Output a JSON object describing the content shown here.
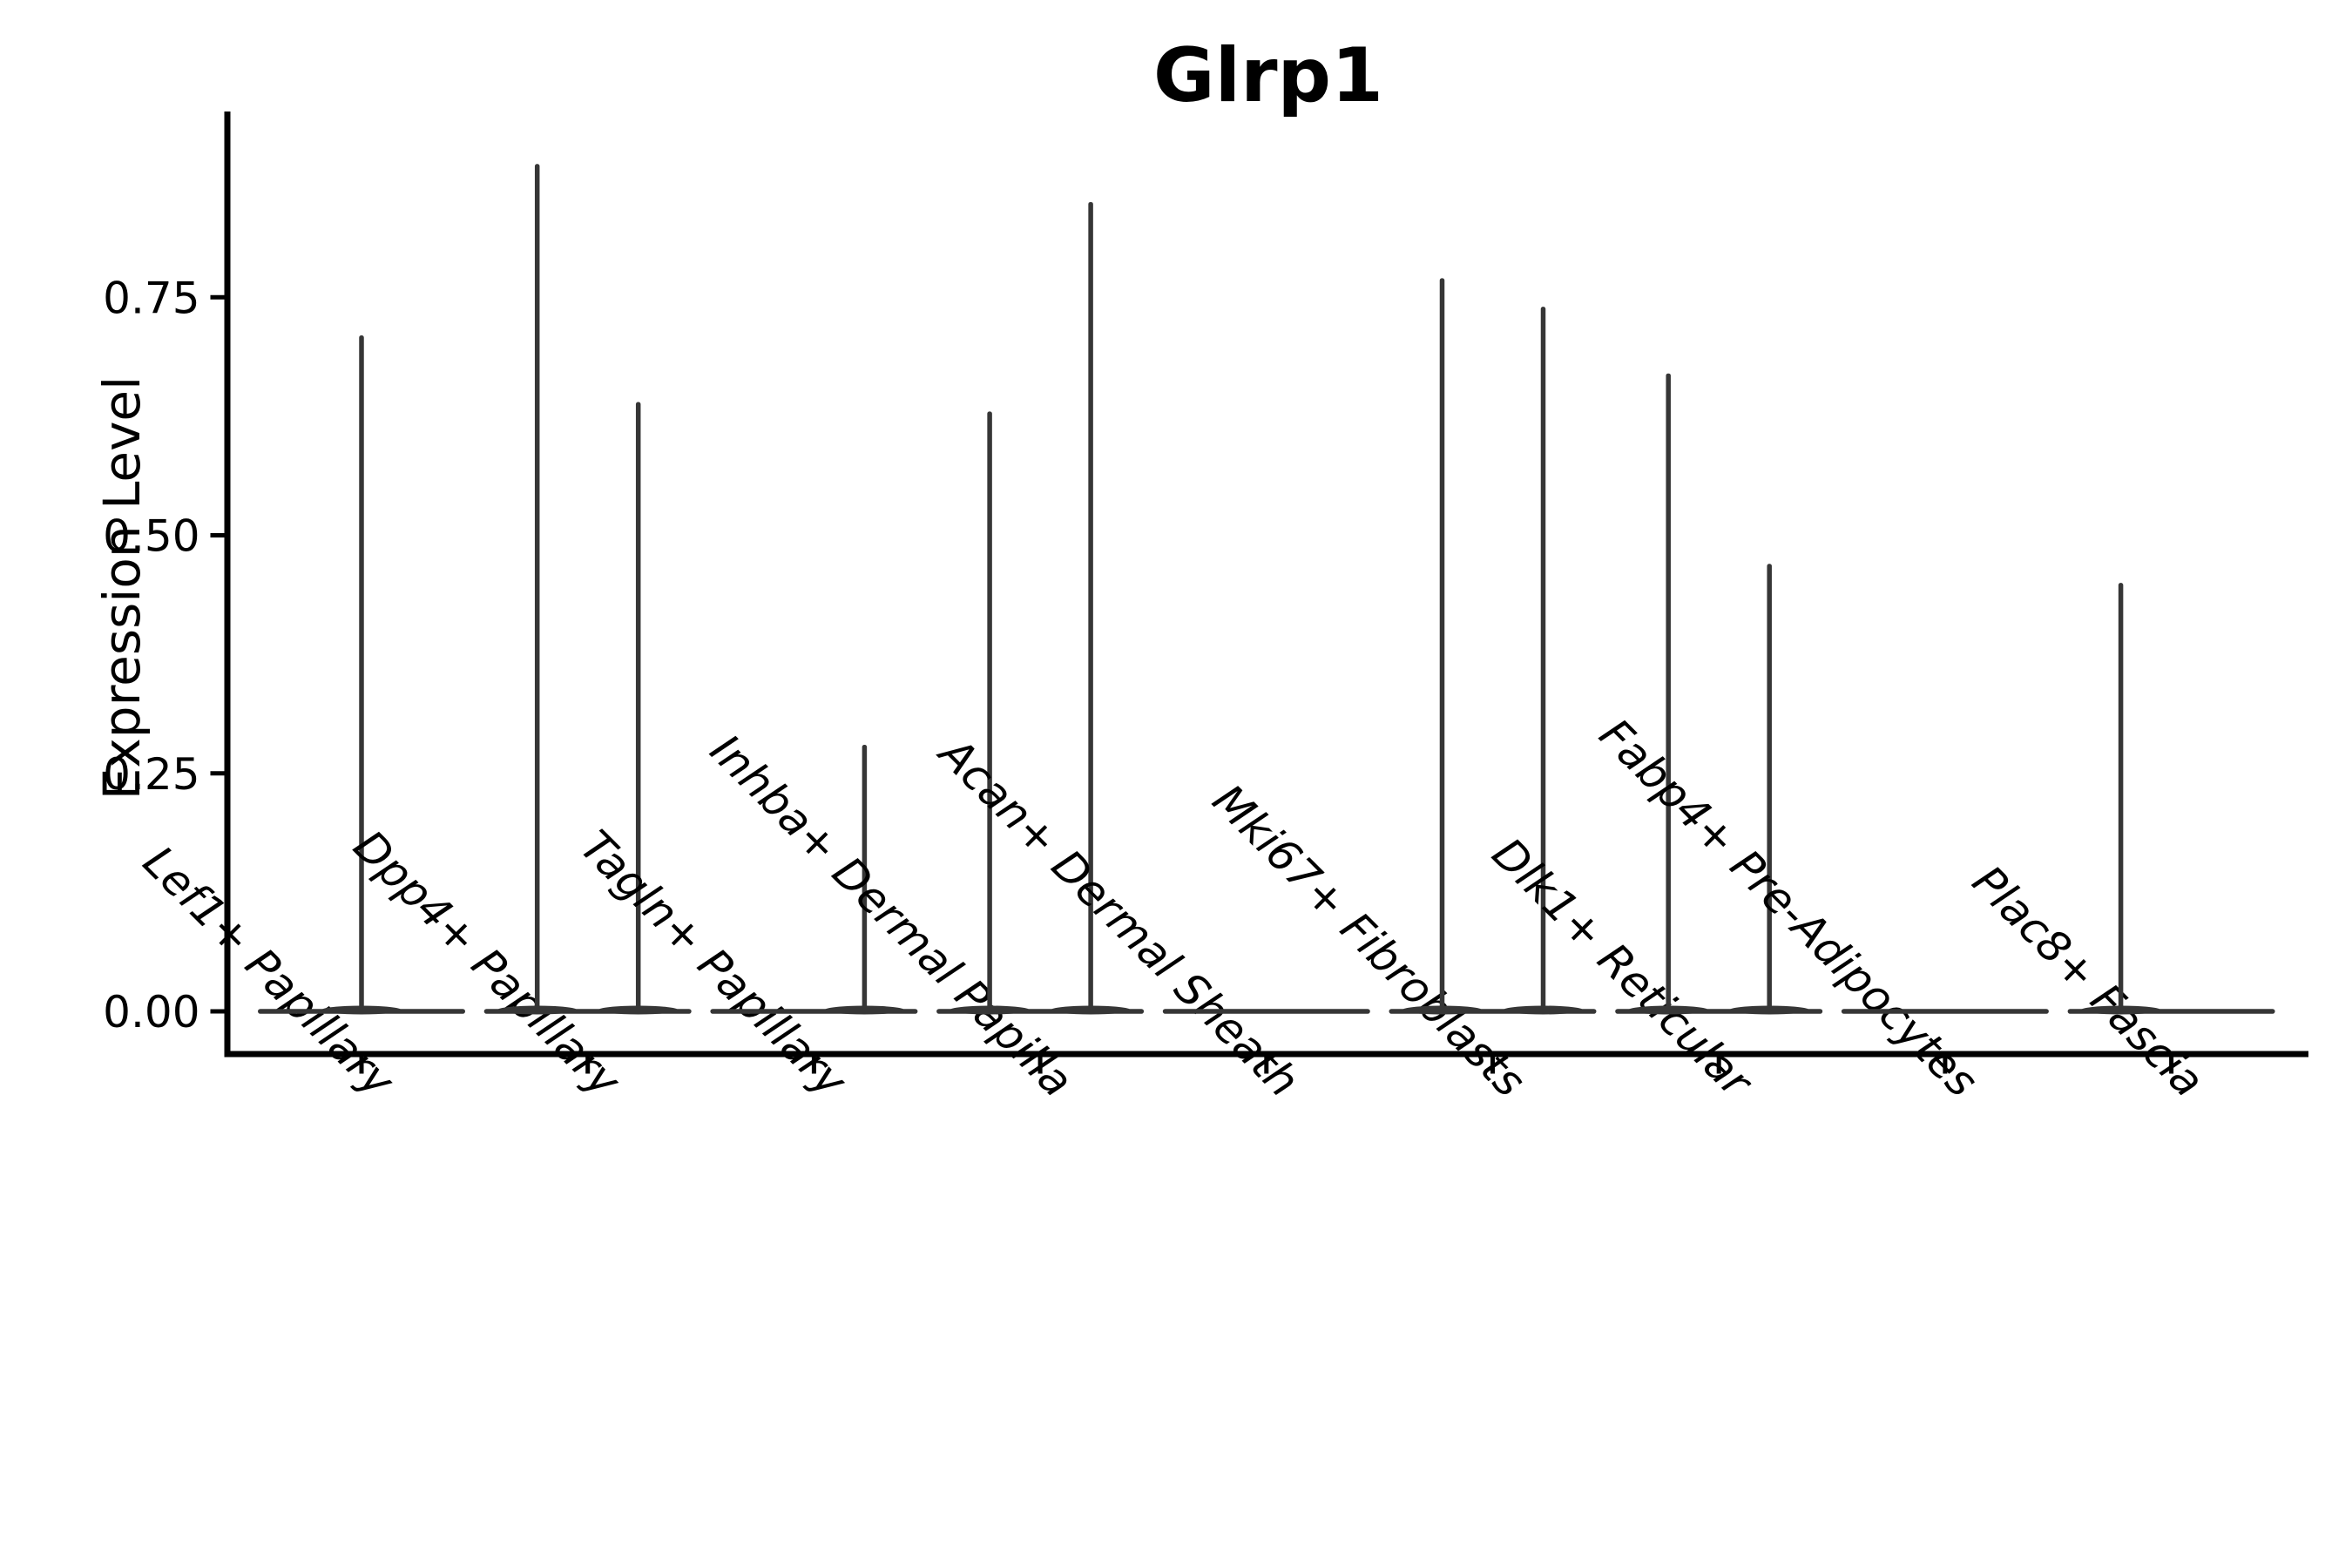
{
  "title": "Glrp1",
  "chart_data": {
    "type": "violin",
    "title": "Glrp1",
    "xlabel": "",
    "ylabel": "Expression Level",
    "ylim": [
      -0.045,
      0.93
    ],
    "y_tick_values": [
      0.0,
      0.25,
      0.5,
      0.75
    ],
    "y_tick_labels": [
      "0.00",
      "0.25",
      "0.50",
      "0.75"
    ],
    "grid": false,
    "legend": "none",
    "baseline_value": 0.0,
    "description": "Zero-inflated expression violins: every category shows a wide flat base at expression 0; thin tails (spikes) rise to the maximum expression value. Categories may contain one centered violin, two side-by-side (dodged) violins, or only the flat zero base.",
    "colors": {
      "violin": "#363636",
      "axis": "#000000",
      "background": "#ffffff"
    },
    "categories": [
      {
        "label": "Lef1+ Papillary",
        "violins": [
          {
            "position": "center",
            "peak": 0.71
          }
        ]
      },
      {
        "label": "Dpp4+ Papillary",
        "violins": [
          {
            "position": "left",
            "peak": 0.89
          },
          {
            "position": "right",
            "peak": 0.64
          }
        ]
      },
      {
        "label": "Tagln+ Papillary",
        "violins": [
          {
            "position": "right",
            "peak": 0.28
          }
        ]
      },
      {
        "label": "Inhba+ Dermal Papilla",
        "violins": [
          {
            "position": "left",
            "peak": 0.63
          },
          {
            "position": "right",
            "peak": 0.85
          }
        ]
      },
      {
        "label": "Acan+ Dermal Sheath",
        "violins": []
      },
      {
        "label": "Mki67+ Fibroblasts",
        "violins": [
          {
            "position": "left",
            "peak": 0.77
          },
          {
            "position": "right",
            "peak": 0.74
          }
        ]
      },
      {
        "label": "Dlk1+ Reticular",
        "violins": [
          {
            "position": "left",
            "peak": 0.67
          },
          {
            "position": "right",
            "peak": 0.47
          }
        ]
      },
      {
        "label": "Fabp4+ Pre-Adipocytes",
        "violins": []
      },
      {
        "label": "Plac8+ Fascia",
        "violins": [
          {
            "position": "left",
            "peak": 0.45
          }
        ]
      }
    ]
  }
}
